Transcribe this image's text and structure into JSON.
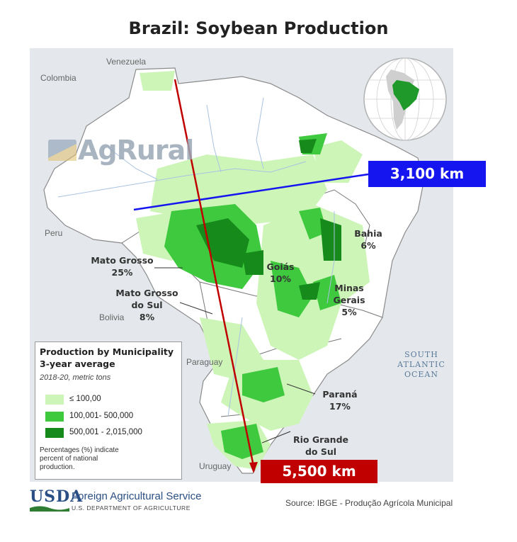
{
  "title": "Brazil: Soybean Production",
  "countries": {
    "venezuela": "Venezuela",
    "colombia": "Colombia",
    "peru": "Peru",
    "bolivia": "Bolivia",
    "paraguay": "Paraguay",
    "uruguay": "Uruguay"
  },
  "states": {
    "mato_grosso": {
      "name": "Mato Grosso",
      "pct": "25%"
    },
    "mato_grosso_do_sul": {
      "name1": "Mato Grosso",
      "name2": "do Sul",
      "pct": "8%"
    },
    "goias": {
      "name": "Goiás",
      "pct": "10%"
    },
    "bahia": {
      "name": "Bahia",
      "pct": "6%"
    },
    "minas_gerais": {
      "name1": "Minas",
      "name2": "Gerais",
      "pct": "5%"
    },
    "parana": {
      "name": "Paraná",
      "pct": "17%"
    },
    "rio_grande_do_sul": {
      "name1": "Rio Grande",
      "name2": "do Sul"
    }
  },
  "ocean": {
    "line1": "SOUTH",
    "line2": "ATLANTIC",
    "line3": "OCEAN"
  },
  "watermark": "AgRural",
  "distances": {
    "east_west": "3,100 km",
    "north_south": "5,500 km"
  },
  "legend": {
    "title1": "Production by Municipality",
    "title2": "3-year average",
    "subtitle": "2018-20, metric tons",
    "items": [
      {
        "label": "≤ 100,00",
        "color": "#cdf5b8"
      },
      {
        "label": "100,001- 500,000",
        "color": "#3fc93f"
      },
      {
        "label": "500,001 - 2,015,000",
        "color": "#168a1a"
      }
    ],
    "note1": "Percentages (%) indicate",
    "note2": "percent of national",
    "note3": "production."
  },
  "footer": {
    "usda": "USDA",
    "agency": "Foreign Agricultural Service",
    "department": "U.S. DEPARTMENT OF AGRICULTURE",
    "source": "Source: IBGE - Produção Agrícola Municipal"
  },
  "colors": {
    "line_blue": "#1515f0",
    "line_red": "#c00000",
    "land": "#ffffff",
    "foreign": "#e4e8ec"
  }
}
